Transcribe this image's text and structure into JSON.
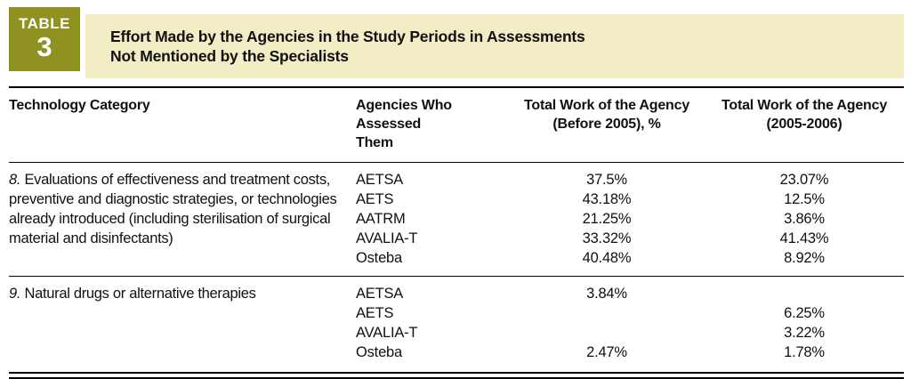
{
  "badge": {
    "word": "TABLE",
    "number": "3"
  },
  "title": {
    "line1": "Effort Made by the Agencies in the Study Periods in Assessments",
    "line2": "Not Mentioned by the Specialists"
  },
  "colors": {
    "badge_bg": "#8f9120",
    "banner_bg": "#f2edc4",
    "rule": "#000000"
  },
  "header": {
    "c1": "Technology Category",
    "c2": [
      "Agencies Who Assessed",
      "Them"
    ],
    "c3": [
      "Total Work of the Agency",
      "(Before 2005), %"
    ],
    "c4": [
      "Total Work of the Agency",
      "(2005-2006)"
    ]
  },
  "rows": [
    {
      "number": "8.",
      "category": "Evaluations of effectiveness and treatment costs, preventive and diagnostic strategies, or technologies already introduced (including sterilisation of surgical material and disinfectants)",
      "entries": [
        {
          "agency": "AETSA",
          "before_2005": "37.5%",
          "y2005_2006": "23.07%"
        },
        {
          "agency": "AETS",
          "before_2005": "43.18%",
          "y2005_2006": "12.5%"
        },
        {
          "agency": "AATRM",
          "before_2005": "21.25%",
          "y2005_2006": "3.86%"
        },
        {
          "agency": "AVALIA-T",
          "before_2005": "33.32%",
          "y2005_2006": "41.43%"
        },
        {
          "agency": "Osteba",
          "before_2005": "40.48%",
          "y2005_2006": "8.92%"
        }
      ]
    },
    {
      "number": "9.",
      "category": "Natural drugs or alternative therapies",
      "entries": [
        {
          "agency": "AETSA",
          "before_2005": "3.84%",
          "y2005_2006": ""
        },
        {
          "agency": "AETS",
          "before_2005": "",
          "y2005_2006": "6.25%"
        },
        {
          "agency": "AVALIA-T",
          "before_2005": "",
          "y2005_2006": "3.22%"
        },
        {
          "agency": "Osteba",
          "before_2005": "2.47%",
          "y2005_2006": "1.78%"
        }
      ]
    }
  ]
}
